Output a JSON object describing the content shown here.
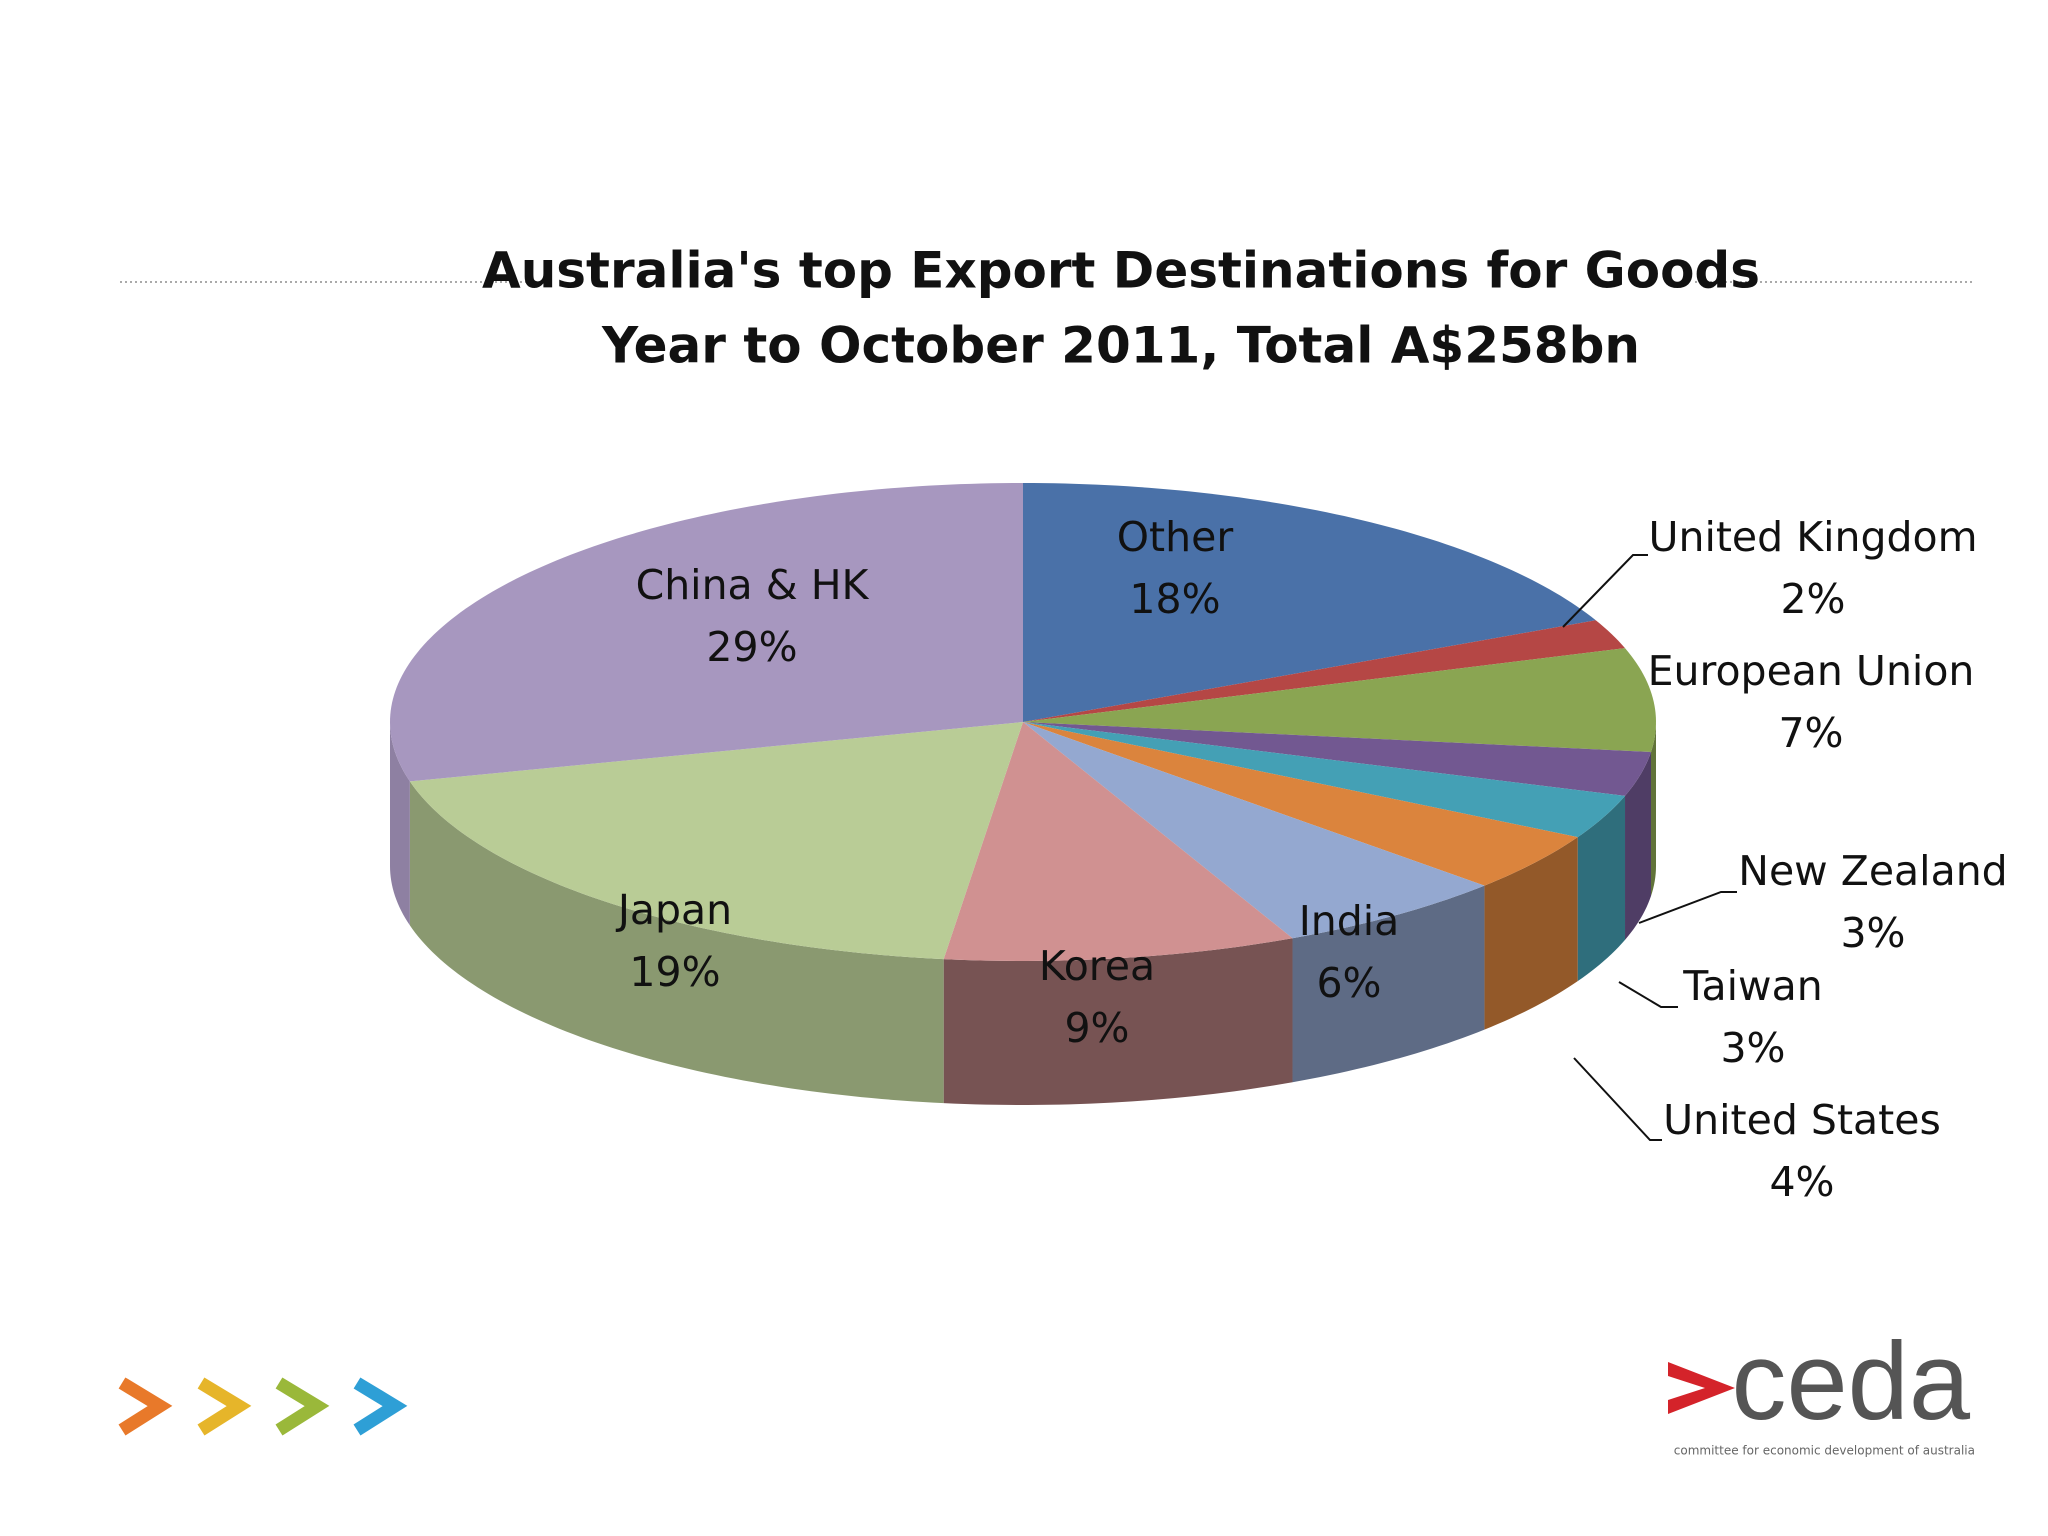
{
  "chart_data": {
    "type": "pie3d",
    "title": "Australia's top Export Destinations for Goods",
    "subtitle": "Year to October 2011, Total A$258bn",
    "categories": [
      "Other",
      "United Kingdom",
      "European Union",
      "New Zealand",
      "Taiwan",
      "United States",
      "India",
      "Korea",
      "Japan",
      "China & HK"
    ],
    "values": [
      18,
      2,
      7,
      3,
      3,
      4,
      6,
      9,
      19,
      29
    ],
    "value_labels": [
      "18%",
      "2%",
      "7%",
      "3%",
      "3%",
      "4%",
      "6%",
      "9%",
      "19%",
      "29%"
    ],
    "colors": [
      "#4a71a8",
      "#b54745",
      "#8aa552",
      "#725891",
      "#44a0b5",
      "#db843d",
      "#94a8d0",
      "#d09191",
      "#b9cc96",
      "#a797bf"
    ]
  },
  "logo": {
    "name": "ceda",
    "tagline": "committee for economic development of australia"
  }
}
